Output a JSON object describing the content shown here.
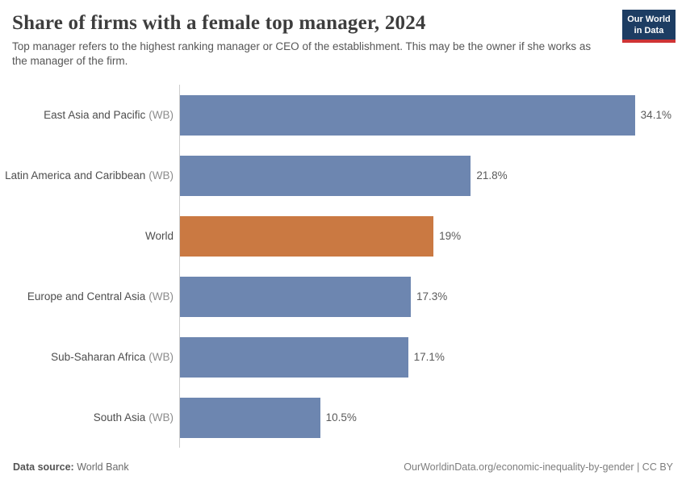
{
  "header": {
    "title": "Share of firms with a female top manager, 2024",
    "subtitle": "Top manager refers to the highest ranking manager or CEO of the establishment. This may be the owner if she works as the manager of the firm.",
    "logo": {
      "line1": "Our World",
      "line2": "in Data",
      "bg_color": "#1d3d63",
      "stripe_color": "#cf3435"
    }
  },
  "chart_data": {
    "type": "bar",
    "orientation": "horizontal",
    "title": "Share of firms with a female top manager, 2024",
    "xlabel": "",
    "ylabel": "",
    "xlim": [
      0,
      35
    ],
    "grid": false,
    "legend": "none",
    "categories": [
      "East Asia and Pacific (WB)",
      "Latin America and Caribbean (WB)",
      "World",
      "Europe and Central Asia (WB)",
      "Sub-Saharan Africa (WB)",
      "South Asia (WB)"
    ],
    "values": [
      34.1,
      21.8,
      19,
      17.3,
      17.1,
      10.5
    ],
    "bars": [
      {
        "label": "East Asia and Pacific",
        "suffix": "(WB)",
        "value": 34.1,
        "value_label": "34.1%",
        "color": "#6d86b0",
        "highlighted": false
      },
      {
        "label": "Latin America and Caribbean",
        "suffix": "(WB)",
        "value": 21.8,
        "value_label": "21.8%",
        "color": "#6d86b0",
        "highlighted": false
      },
      {
        "label": "World",
        "suffix": "",
        "value": 19,
        "value_label": "19%",
        "color": "#ca7942",
        "highlighted": true
      },
      {
        "label": "Europe and Central Asia",
        "suffix": "(WB)",
        "value": 17.3,
        "value_label": "17.3%",
        "color": "#6d86b0",
        "highlighted": false
      },
      {
        "label": "Sub-Saharan Africa",
        "suffix": "(WB)",
        "value": 17.1,
        "value_label": "17.1%",
        "color": "#6d86b0",
        "highlighted": false
      },
      {
        "label": "South Asia",
        "suffix": "(WB)",
        "value": 10.5,
        "value_label": "10.5%",
        "color": "#6d86b0",
        "highlighted": false
      }
    ],
    "colors": {
      "default_bar": "#6d86b0",
      "highlight_bar": "#ca7942",
      "axis_line": "#cdcdcd"
    }
  },
  "footer": {
    "source_label": "Data source:",
    "source_value": "World Bank",
    "url": "OurWorldinData.org/economic-inequality-by-gender",
    "separator": " | ",
    "license": "CC BY"
  }
}
